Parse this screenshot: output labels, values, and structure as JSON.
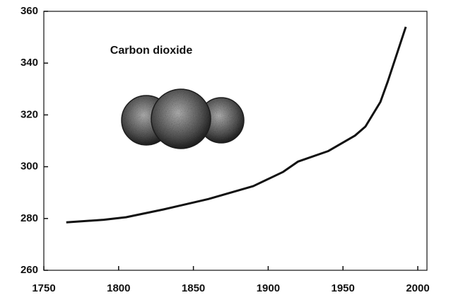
{
  "chart_data": {
    "type": "line",
    "title": "Carbon dioxide",
    "x": [
      1765,
      1790,
      1805,
      1830,
      1860,
      1890,
      1910,
      1920,
      1940,
      1958,
      1965,
      1975,
      1980,
      1988,
      1992
    ],
    "values": [
      278.5,
      279.5,
      280.5,
      283.5,
      287.5,
      292.5,
      298,
      302,
      306,
      312,
      315.5,
      325,
      333,
      347,
      354
    ],
    "color": "#111111",
    "xlim": [
      1750,
      2000
    ],
    "xticks": [
      1750,
      1800,
      1850,
      1900,
      1950,
      2000
    ],
    "ylim": [
      260,
      360
    ],
    "yticks": [
      260,
      280,
      300,
      320,
      340,
      360
    ]
  }
}
